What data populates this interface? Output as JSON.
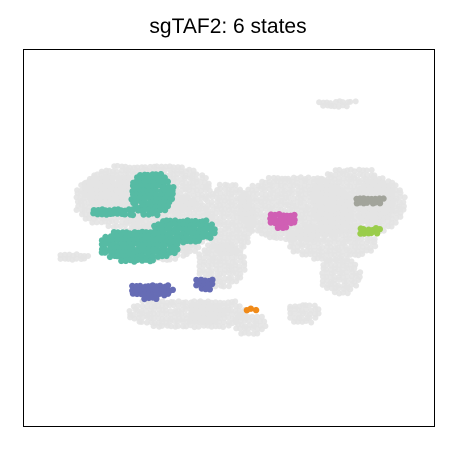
{
  "chart_data": {
    "type": "scatter",
    "title": "sgTAF2: 6 states",
    "xlabel": "",
    "ylabel": "",
    "show_ticks": false,
    "grid": false,
    "legend": "none",
    "background_color": "#e3e3e3",
    "background_clusters": [
      {
        "cx": 0.3,
        "cy": 0.63,
        "rx": 0.16,
        "ry": 0.07
      },
      {
        "cx": 0.22,
        "cy": 0.6,
        "rx": 0.1,
        "ry": 0.07
      },
      {
        "cx": 0.35,
        "cy": 0.54,
        "rx": 0.11,
        "ry": 0.08
      },
      {
        "cx": 0.33,
        "cy": 0.49,
        "rx": 0.1,
        "ry": 0.05
      },
      {
        "cx": 0.5,
        "cy": 0.55,
        "rx": 0.06,
        "ry": 0.1
      },
      {
        "cx": 0.48,
        "cy": 0.43,
        "rx": 0.06,
        "ry": 0.06
      },
      {
        "cx": 0.66,
        "cy": 0.58,
        "rx": 0.14,
        "ry": 0.09
      },
      {
        "cx": 0.8,
        "cy": 0.6,
        "rx": 0.1,
        "ry": 0.09
      },
      {
        "cx": 0.87,
        "cy": 0.59,
        "rx": 0.06,
        "ry": 0.07
      },
      {
        "cx": 0.75,
        "cy": 0.49,
        "rx": 0.11,
        "ry": 0.05
      },
      {
        "cx": 0.77,
        "cy": 0.4,
        "rx": 0.05,
        "ry": 0.05
      },
      {
        "cx": 0.37,
        "cy": 0.3,
        "rx": 0.12,
        "ry": 0.04
      },
      {
        "cx": 0.47,
        "cy": 0.3,
        "rx": 0.07,
        "ry": 0.04
      },
      {
        "cx": 0.55,
        "cy": 0.27,
        "rx": 0.04,
        "ry": 0.03
      },
      {
        "cx": 0.68,
        "cy": 0.3,
        "rx": 0.04,
        "ry": 0.03
      },
      {
        "cx": 0.12,
        "cy": 0.45,
        "rx": 0.04,
        "ry": 0.015
      },
      {
        "cx": 0.76,
        "cy": 0.86,
        "rx": 0.05,
        "ry": 0.012
      }
    ],
    "series": [
      {
        "color": "#56bba4",
        "clusters": [
          {
            "cx": 0.31,
            "cy": 0.62,
            "rx": 0.055,
            "ry": 0.06
          },
          {
            "cx": 0.22,
            "cy": 0.57,
            "rx": 0.06,
            "ry": 0.015
          },
          {
            "cx": 0.28,
            "cy": 0.48,
            "rx": 0.1,
            "ry": 0.045
          },
          {
            "cx": 0.39,
            "cy": 0.52,
            "rx": 0.08,
            "ry": 0.035
          }
        ]
      },
      {
        "color": "#666cb5",
        "clusters": [
          {
            "cx": 0.31,
            "cy": 0.36,
            "rx": 0.055,
            "ry": 0.022
          },
          {
            "cx": 0.44,
            "cy": 0.38,
            "rx": 0.028,
            "ry": 0.018
          }
        ]
      },
      {
        "color": "#d05fb4",
        "clusters": [
          {
            "cx": 0.63,
            "cy": 0.55,
            "rx": 0.038,
            "ry": 0.022
          }
        ]
      },
      {
        "color": "#a2a49b",
        "clusters": [
          {
            "cx": 0.84,
            "cy": 0.6,
            "rx": 0.04,
            "ry": 0.015
          }
        ]
      },
      {
        "color": "#9acd4b",
        "clusters": [
          {
            "cx": 0.84,
            "cy": 0.52,
            "rx": 0.03,
            "ry": 0.014
          }
        ]
      },
      {
        "color": "#f08a18",
        "clusters": [
          {
            "cx": 0.55,
            "cy": 0.31,
            "rx": 0.015,
            "ry": 0.01
          }
        ]
      }
    ],
    "xlim": [
      0,
      1
    ],
    "ylim": [
      0,
      1
    ]
  }
}
